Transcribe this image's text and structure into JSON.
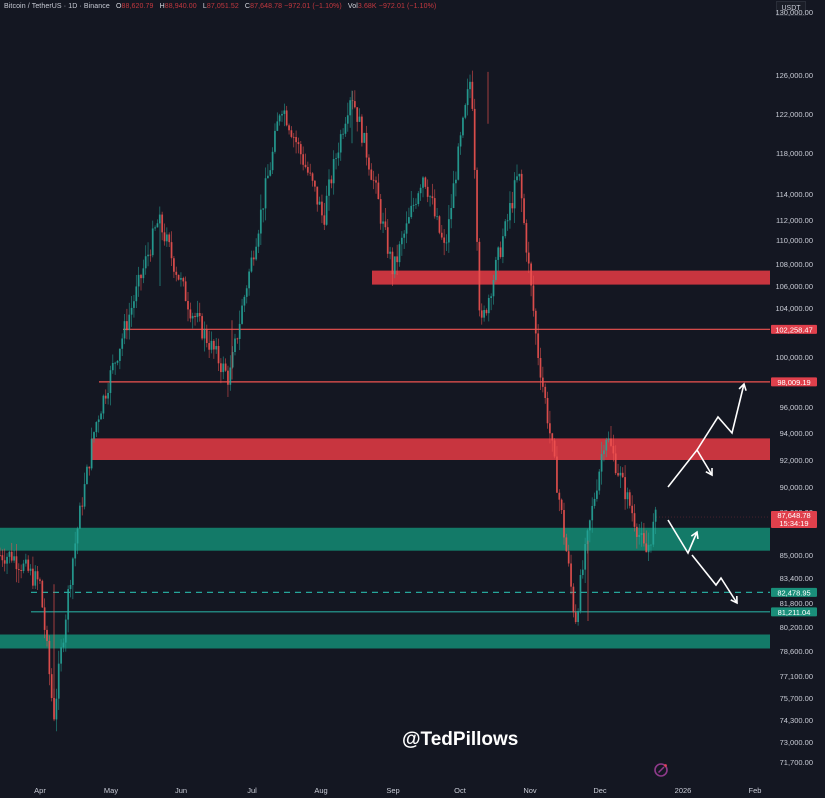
{
  "header": {
    "symbol": "Bitcoin / TetherUS · 1D · Binance",
    "open_label": "O",
    "open": "88,620.79",
    "high_label": "H",
    "high": "88,940.00",
    "low_label": "L",
    "low": "87,051.52",
    "close_label": "C",
    "close": "87,648.78",
    "change": "−972.01 (−1.10%)",
    "vol_label": "Vol",
    "vol": "3.68K",
    "vol_change": "−972.01 (−1.10%)"
  },
  "currency_button": "USDT",
  "watermark": "@TedPillows",
  "colors": {
    "background": "#141722",
    "up": "#26a69a",
    "down": "#ef5350",
    "resistance_zone": "#c8353f",
    "support_zone": "#137a68",
    "axis_text": "#c9ccd6"
  },
  "chart_data": {
    "type": "candlestick",
    "title": "Bitcoin / TetherUS · 1D · Binance",
    "xlabel": "",
    "ylabel": "USDT",
    "x_ticks": [
      "Apr",
      "May",
      "Jun",
      "Jul",
      "Aug",
      "Sep",
      "Oct",
      "Nov",
      "Dec",
      "2026",
      "Feb"
    ],
    "y_ticks": [
      "130,000.00",
      "126,000.00",
      "122,000.00",
      "118,000.00",
      "114,000.00",
      "112,000.00",
      "110,000.00",
      "108,000.00",
      "106,000.00",
      "104,000.00",
      "100,000.00",
      "96,000.00",
      "94,000.00",
      "92,000.00",
      "90,000.00",
      "88,000.00",
      "85,000.00",
      "83,400.00",
      "81,800.00",
      "80,200.00",
      "78,600.00",
      "77,100.00",
      "75,700.00",
      "74,300.00",
      "73,000.00",
      "71,700.00"
    ],
    "ylim": [
      71000,
      131000
    ],
    "grid": false,
    "price_path_approx": [
      {
        "date": "Mar 20",
        "close": 85000
      },
      {
        "date": "Apr 1",
        "close": 83000
      },
      {
        "date": "Apr 7",
        "low": 74500
      },
      {
        "date": "Apr 15",
        "close": 84500
      },
      {
        "date": "Apr 25",
        "close": 94500
      },
      {
        "date": "May 10",
        "close": 104000
      },
      {
        "date": "May 22",
        "high": 111900
      },
      {
        "date": "Jun 5",
        "close": 104000
      },
      {
        "date": "Jun 22",
        "low": 98200
      },
      {
        "date": "Jul 10",
        "close": 117500
      },
      {
        "date": "Jul 14",
        "high": 123200
      },
      {
        "date": "Aug 2",
        "low": 112000
      },
      {
        "date": "Aug 14",
        "high": 124400
      },
      {
        "date": "Sep 1",
        "low": 107300
      },
      {
        "date": "Sep 15",
        "close": 116000
      },
      {
        "date": "Sep 25",
        "low": 109000
      },
      {
        "date": "Oct 6",
        "high": 126200
      },
      {
        "date": "Oct 10",
        "low": 102000
      },
      {
        "date": "Oct 27",
        "high": 116000
      },
      {
        "date": "Nov 4",
        "close": 101000
      },
      {
        "date": "Nov 21",
        "low": 80600
      },
      {
        "date": "Dec 3",
        "high": 94100
      },
      {
        "date": "Dec 18",
        "low": 85000
      },
      {
        "date": "Dec 22",
        "close": 87648.78
      }
    ],
    "horizontal_lines": [
      {
        "price": 102258.47,
        "label": "102,258.47",
        "color": "#ef5350",
        "style": "solid"
      },
      {
        "price": 98009.19,
        "label": "98,009.19",
        "color": "#ef5350",
        "style": "solid"
      },
      {
        "price": 82478.95,
        "label": "82,478.95",
        "color": "#26a69a",
        "style": "dashed"
      },
      {
        "price": 81211.04,
        "label": "81,211.04",
        "color": "#26a69a",
        "style": "solid"
      }
    ],
    "zones": [
      {
        "type": "resistance",
        "from": 106200,
        "to": 107400,
        "color": "#c8353f"
      },
      {
        "type": "resistance",
        "from": 92000,
        "to": 93600,
        "color": "#c8353f"
      },
      {
        "type": "support",
        "from": 85300,
        "to": 86900,
        "color": "#137a68"
      },
      {
        "type": "support",
        "from": 78900,
        "to": 79700,
        "color": "#137a68"
      }
    ],
    "current_price": {
      "value": "87,648.78",
      "countdown": "15:34:19"
    },
    "annotations": [
      {
        "type": "arrow-path",
        "scenario": "bullish",
        "points": [
          [
            90100,
            "Dec 26"
          ],
          [
            93000,
            "Jan 3"
          ],
          [
            90600,
            "Jan 7"
          ],
          [
            95200,
            "Jan 10"
          ],
          [
            94000,
            "Jan 14"
          ],
          [
            97800,
            "Jan 17"
          ]
        ]
      },
      {
        "type": "arrow-path",
        "scenario": "bearish",
        "points": [
          [
            88000,
            "Dec 26"
          ],
          [
            85200,
            "Jan 3"
          ],
          [
            86800,
            "Jan 5"
          ],
          [
            83500,
            "Jan 8"
          ],
          [
            84300,
            "Jan 11"
          ],
          [
            82000,
            "Jan 17"
          ]
        ]
      }
    ]
  }
}
